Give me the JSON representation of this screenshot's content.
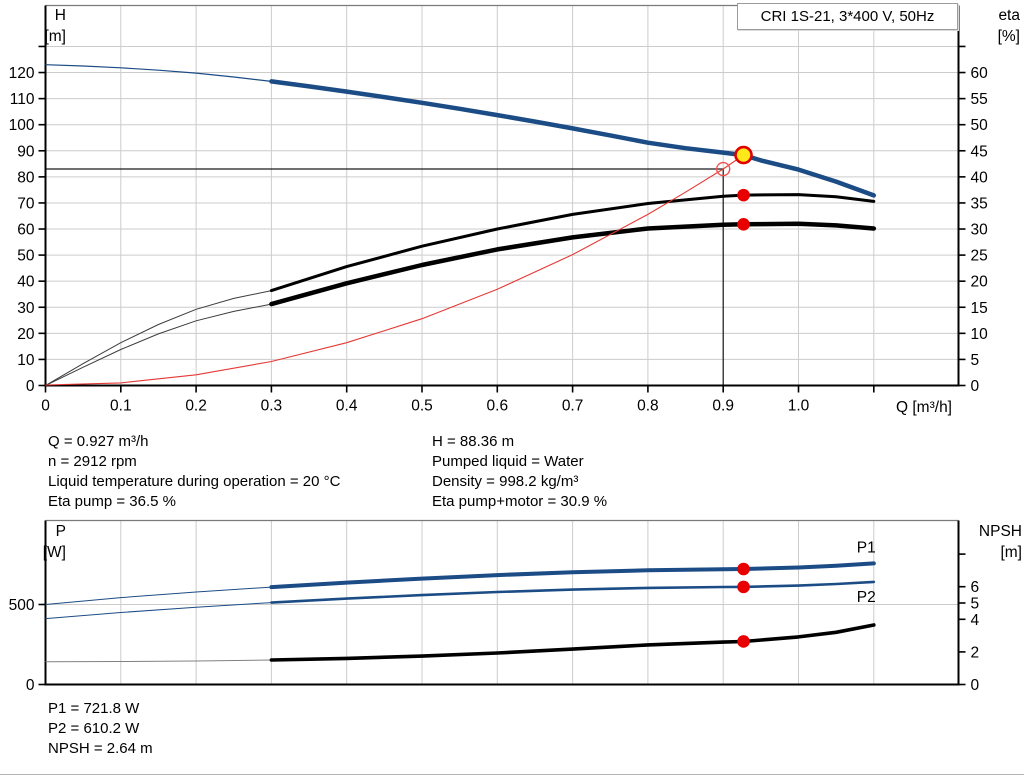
{
  "header": {
    "label": "CRI 1S-21, 3*400 V, 50Hz"
  },
  "colors": {
    "curve_blue": "#1c4c85",
    "curve_red": "#e53935",
    "marker_red": "#e80000",
    "marker_yellow": "#ffe81a",
    "grid": "#cccccc",
    "axis": "#000000",
    "frame": "#7a7a7a",
    "duty_line": "#1a1a1a"
  },
  "info_top": {
    "left": [
      "Q = 0.927 m³/h",
      "n = 2912 rpm",
      "Liquid temperature during operation = 20 °C",
      "Eta pump = 36.5 %"
    ],
    "right": [
      "H = 88.36 m",
      "Pumped liquid = Water",
      "Density = 998.2 kg/m³",
      "Eta pump+motor = 30.9 %"
    ]
  },
  "info_bottom": [
    "P1 = 721.8 W",
    "P2 = 610.2 W",
    "NPSH = 2.64 m"
  ],
  "chart_data": [
    {
      "name": "qh-eta-chart",
      "type": "line",
      "title": "CRI 1S-21, 3*400 V, 50Hz",
      "x_title": "Q [m³/h]",
      "y_left_title": [
        "H",
        "[m]"
      ],
      "y_right_title": [
        "eta",
        "[%]"
      ],
      "x_range": [
        0,
        1.21
      ],
      "y_left_range": [
        0,
        145.7
      ],
      "y_right_range": [
        0,
        72.9
      ],
      "x_tick_values": [
        0,
        0.1,
        0.2,
        0.3,
        0.4,
        0.5,
        0.6,
        0.7,
        0.8,
        0.9,
        1.0,
        1.1
      ],
      "x_tick_labels": [
        "0",
        "0.1",
        "0.2",
        "0.3",
        "0.4",
        "0.5",
        "0.6",
        "0.7",
        "0.8",
        "0.9",
        "1.0",
        ""
      ],
      "y_left_tick_values": [
        0,
        10,
        20,
        30,
        40,
        50,
        60,
        70,
        80,
        90,
        100,
        110,
        120,
        130
      ],
      "y_left_tick_labels": [
        "0",
        "10",
        "20",
        "30",
        "40",
        "50",
        "60",
        "70",
        "80",
        "90",
        "100",
        "110",
        "120",
        ""
      ],
      "y_right_tick_values": [
        0,
        5,
        10,
        15,
        20,
        25,
        30,
        35,
        40,
        45,
        50,
        55,
        60,
        65
      ],
      "y_right_tick_labels": [
        "0",
        "5",
        "10",
        "15",
        "20",
        "25",
        "30",
        "35",
        "40",
        "45",
        "50",
        "55",
        "60",
        ""
      ],
      "y_gridlines": [
        10,
        20,
        30,
        40,
        50,
        60,
        70,
        80,
        90,
        100,
        110,
        120,
        130
      ],
      "duty": {
        "q": 0.9,
        "h": 83
      },
      "series": [
        {
          "name": "qh-curve",
          "axis": "left",
          "color": "#1c4c85",
          "thick_from": 0.3,
          "x": [
            0,
            0.05,
            0.1,
            0.15,
            0.2,
            0.25,
            0.3,
            0.35,
            0.4,
            0.45,
            0.5,
            0.55,
            0.6,
            0.65,
            0.7,
            0.75,
            0.8,
            0.85,
            0.9,
            0.927,
            0.95,
            1.0,
            1.05,
            1.1
          ],
          "y": [
            123,
            122.5,
            121.8,
            120.9,
            119.8,
            118.3,
            116.6,
            114.7,
            112.7,
            110.6,
            108.4,
            106.1,
            103.7,
            101.2,
            98.6,
            95.9,
            93.1,
            91.0,
            89.3,
            88.36,
            86.3,
            82.8,
            78.2,
            72.9
          ]
        },
        {
          "name": "eta-pump-curve",
          "axis": "right",
          "color": "#000000",
          "thick_from": 0.3,
          "x": [
            0,
            0.05,
            0.1,
            0.15,
            0.2,
            0.25,
            0.3,
            0.4,
            0.5,
            0.6,
            0.7,
            0.8,
            0.9,
            0.927,
            1.0,
            1.05,
            1.1
          ],
          "y": [
            0,
            4.2,
            8.2,
            11.7,
            14.6,
            16.7,
            18.2,
            22.8,
            26.7,
            30.0,
            32.8,
            34.9,
            36.3,
            36.5,
            36.6,
            36.2,
            35.3
          ]
        },
        {
          "name": "eta-pump-motor-curve",
          "axis": "right",
          "color": "#000000",
          "thick_from": 0.3,
          "x": [
            0,
            0.05,
            0.1,
            0.15,
            0.2,
            0.25,
            0.3,
            0.4,
            0.5,
            0.6,
            0.7,
            0.8,
            0.9,
            0.927,
            1.0,
            1.05,
            1.1
          ],
          "y": [
            0,
            3.5,
            6.9,
            9.9,
            12.4,
            14.2,
            15.6,
            19.6,
            23.1,
            26.1,
            28.4,
            30.1,
            30.8,
            30.9,
            31.0,
            30.7,
            30.1
          ]
        },
        {
          "name": "system-curve",
          "axis": "left",
          "color": "#e53935",
          "x": [
            0,
            0.1,
            0.2,
            0.3,
            0.4,
            0.5,
            0.6,
            0.7,
            0.8,
            0.85,
            0.9,
            0.927
          ],
          "y": [
            0.2,
            1.0,
            4.1,
            9.2,
            16.4,
            25.6,
            36.9,
            50.2,
            65.6,
            74.1,
            83.0,
            88.36
          ]
        }
      ],
      "markers": [
        {
          "name": "duty-point-marker",
          "q": 0.9,
          "v": 83,
          "axis": "left",
          "shape": "open-circle"
        },
        {
          "name": "operating-point-marker",
          "q": 0.927,
          "v": 88.36,
          "axis": "left",
          "shape": "yellow-dot"
        },
        {
          "name": "eta-pump-point",
          "q": 0.927,
          "v": 36.5,
          "axis": "right",
          "shape": "red-dot"
        },
        {
          "name": "eta-pump-motor-point",
          "q": 0.927,
          "v": 30.9,
          "axis": "right",
          "shape": "red-dot"
        }
      ]
    },
    {
      "name": "power-npsh-chart",
      "type": "line",
      "x_title": "",
      "y_left_title": [
        "P",
        "[W]"
      ],
      "y_right_title": [
        "NPSH",
        "[m]"
      ],
      "x_range": [
        0,
        1.21
      ],
      "y_left_range": [
        0,
        1025
      ],
      "y_right_range": [
        0,
        10.1
      ],
      "x_tick_values": [
        0,
        0.1,
        0.2,
        0.3,
        0.4,
        0.5,
        0.6,
        0.7,
        0.8,
        0.9,
        1.0,
        1.1
      ],
      "x_tick_labels": [
        "",
        "",
        "",
        "",
        "",
        "",
        "",
        "",
        "",
        "",
        "",
        ""
      ],
      "y_left_tick_values": [
        0,
        500
      ],
      "y_left_tick_labels": [
        "0",
        "500"
      ],
      "y_right_tick_values": [
        0,
        2,
        4,
        5,
        6,
        8
      ],
      "y_right_tick_labels": [
        "0",
        "2",
        "4",
        "5",
        "6",
        ""
      ],
      "y_gridlines": [
        500
      ],
      "series": [
        {
          "name": "p1-curve",
          "axis": "left",
          "color": "#1c4c85",
          "thick_from": 0.3,
          "end_label": "P1",
          "x": [
            0,
            0.1,
            0.2,
            0.3,
            0.4,
            0.5,
            0.6,
            0.7,
            0.8,
            0.9,
            0.927,
            1.0,
            1.05,
            1.1
          ],
          "y": [
            500,
            543,
            578,
            609,
            637,
            662,
            684,
            702,
            714,
            720,
            721.8,
            731,
            742,
            757
          ]
        },
        {
          "name": "p2-curve",
          "axis": "left",
          "color": "#1c4c85",
          "thick_from": 0.3,
          "end_label": "P2",
          "x": [
            0,
            0.1,
            0.2,
            0.3,
            0.4,
            0.5,
            0.6,
            0.7,
            0.8,
            0.9,
            0.927,
            1.0,
            1.05,
            1.1
          ],
          "y": [
            412,
            450,
            483,
            512,
            537,
            559,
            578,
            593,
            604,
            609.5,
            610.2,
            618,
            628,
            641
          ]
        },
        {
          "name": "npsh-curve",
          "axis": "right",
          "color": "#000000",
          "thick_from": 0.3,
          "x": [
            0,
            0.1,
            0.2,
            0.3,
            0.4,
            0.5,
            0.6,
            0.7,
            0.8,
            0.9,
            0.927,
            1.0,
            1.05,
            1.1
          ],
          "y": [
            1.4,
            1.41,
            1.44,
            1.5,
            1.6,
            1.74,
            1.93,
            2.17,
            2.43,
            2.6,
            2.64,
            2.92,
            3.2,
            3.65
          ]
        }
      ],
      "markers": [
        {
          "name": "p1-point",
          "q": 0.927,
          "v": 721.8,
          "axis": "left",
          "shape": "red-dot"
        },
        {
          "name": "p2-point",
          "q": 0.927,
          "v": 610.2,
          "axis": "left",
          "shape": "red-dot"
        },
        {
          "name": "npsh-point",
          "q": 0.927,
          "v": 2.64,
          "axis": "right",
          "shape": "red-dot"
        }
      ]
    }
  ]
}
